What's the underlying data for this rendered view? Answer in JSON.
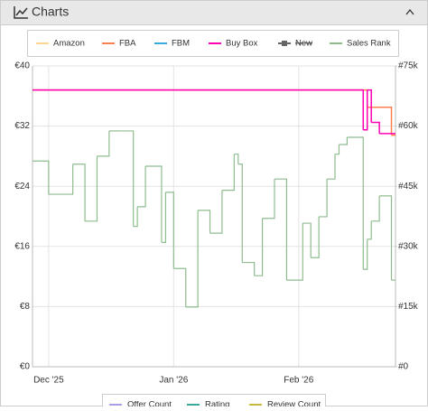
{
  "panel": {
    "title": "Charts"
  },
  "chart_data": {
    "type": "line",
    "xlim": [
      "2025-11-27",
      "2026-02-25"
    ],
    "xticks": [
      {
        "value": "2025-12-01",
        "label": "Dec '25"
      },
      {
        "value": "2026-01-01",
        "label": "Jan '26"
      },
      {
        "value": "2026-02-01",
        "label": "Feb '26"
      }
    ],
    "ylim": [
      0,
      40
    ],
    "yticks": [
      {
        "value": 0,
        "label": "€0"
      },
      {
        "value": 8,
        "label": "€8"
      },
      {
        "value": 16,
        "label": "€16"
      },
      {
        "value": 24,
        "label": "€24"
      },
      {
        "value": 32,
        "label": "€32"
      },
      {
        "value": 40,
        "label": "€40"
      }
    ],
    "y2lim": [
      0,
      75000
    ],
    "y2ticks": [
      {
        "value": 0,
        "label": "#0"
      },
      {
        "value": 15000,
        "label": "#15k"
      },
      {
        "value": 30000,
        "label": "#30k"
      },
      {
        "value": 45000,
        "label": "#45k"
      },
      {
        "value": 60000,
        "label": "#60k"
      },
      {
        "value": 75000,
        "label": "#75k"
      }
    ],
    "grid": true,
    "step": true,
    "series": [
      {
        "name": "Amazon",
        "color": "#ffd591",
        "x": [],
        "values": []
      },
      {
        "name": "FBA",
        "color": "#ff7f50",
        "x": [
          "2025-11-27",
          "2026-02-18",
          "2026-02-24"
        ],
        "values": [
          36.8,
          34.5,
          30.8
        ]
      },
      {
        "name": "FBM",
        "color": "#39a9dc",
        "x": [],
        "values": []
      },
      {
        "name": "Buy Box",
        "color": "#ff00b4",
        "x": [
          "2025-11-27",
          "2026-02-17",
          "2026-02-18",
          "2026-02-19",
          "2026-02-21"
        ],
        "values": [
          36.8,
          31.5,
          36.8,
          32.5,
          31.0
        ]
      },
      {
        "name": "New",
        "color": "#666666",
        "hidden": true,
        "x": [],
        "values": []
      },
      {
        "name": "Sales Rank",
        "color": "#8fbc8f",
        "axis": "y2",
        "x": [
          "2025-11-27",
          "2025-12-01",
          "2025-12-07",
          "2025-12-10",
          "2025-12-13",
          "2025-12-16",
          "2025-12-19",
          "2025-12-22",
          "2025-12-23",
          "2025-12-25",
          "2025-12-29",
          "2025-12-30",
          "2026-01-01",
          "2026-01-04",
          "2026-01-07",
          "2026-01-10",
          "2026-01-13",
          "2026-01-16",
          "2026-01-17",
          "2026-01-18",
          "2026-01-21",
          "2026-01-23",
          "2026-01-26",
          "2026-01-29",
          "2026-02-02",
          "2026-02-04",
          "2026-02-06",
          "2026-02-08",
          "2026-02-10",
          "2026-02-11",
          "2026-02-13",
          "2026-02-17",
          "2026-02-18",
          "2026-02-19",
          "2026-02-21",
          "2026-02-24"
        ],
        "values": [
          51300,
          43000,
          50500,
          36300,
          52500,
          58800,
          58800,
          35000,
          39900,
          50000,
          31000,
          43500,
          24500,
          14900,
          39000,
          33300,
          44000,
          53000,
          50500,
          26000,
          22700,
          37000,
          46800,
          21600,
          35800,
          27200,
          37400,
          46800,
          53000,
          55400,
          57200,
          24300,
          31800,
          36300,
          42600,
          21600
        ]
      }
    ],
    "legend": "top"
  },
  "secondary_legend": [
    {
      "name": "Offer Count",
      "color": "#a79fe8"
    },
    {
      "name": "Rating",
      "color": "#3aa89b"
    },
    {
      "name": "Review Count",
      "color": "#c7b93a"
    }
  ]
}
